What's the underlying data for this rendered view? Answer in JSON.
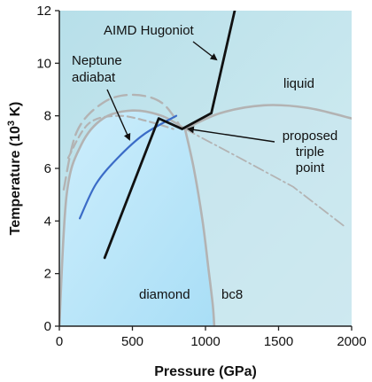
{
  "chart_data": {
    "type": "line",
    "xlabel": "Pressure (GPa)",
    "ylabel_main": "Temperature (10",
    "ylabel_sup": "3",
    "ylabel_end": " K)",
    "xlim": [
      0,
      2000
    ],
    "ylim": [
      0,
      12
    ],
    "xticks": [
      0,
      500,
      1000,
      1500,
      2000
    ],
    "yticks": [
      0,
      2,
      4,
      6,
      8,
      10,
      12
    ],
    "colors": {
      "liquid_region": "#bfe3ec",
      "diamond_region": "#bfe8fb",
      "melt_curve": "#b3b3b3",
      "dashed_curve": "#b3b3b3",
      "hugoniot": "#111111",
      "adiabat": "#3b6cc7"
    },
    "series": [
      {
        "key": "hugoniot",
        "style": "solid-black",
        "x": [
          310,
          680,
          840,
          1040,
          1200
        ],
        "y": [
          2.6,
          7.9,
          7.5,
          8.1,
          12.0
        ]
      },
      {
        "key": "adiabat",
        "style": "solid-blue",
        "x": [
          140,
          250,
          400,
          580,
          800
        ],
        "y": [
          4.1,
          5.4,
          6.4,
          7.3,
          8.0
        ]
      },
      {
        "key": "diamond_melt",
        "style": "solid-gray",
        "x": [
          0,
          50,
          150,
          300,
          500,
          700,
          860
        ],
        "y": [
          0,
          5.0,
          6.9,
          7.9,
          8.2,
          8.0,
          7.5
        ]
      },
      {
        "key": "bc8_melt",
        "style": "solid-gray",
        "x": [
          860,
          1100,
          1400,
          1700,
          2000
        ],
        "y": [
          7.5,
          8.1,
          8.4,
          8.3,
          7.9
        ]
      },
      {
        "key": "diamond_bc8_boundary",
        "style": "solid-gray",
        "x": [
          860,
          920,
          980,
          1020,
          1050,
          1060
        ],
        "y": [
          7.5,
          6.0,
          4.0,
          2.2,
          0.8,
          0
        ]
      },
      {
        "key": "dashed_upper",
        "style": "long-dash-gray",
        "x": [
          30,
          120,
          300,
          500,
          700,
          840
        ],
        "y": [
          5.2,
          7.4,
          8.5,
          8.8,
          8.5,
          7.5
        ]
      },
      {
        "key": "dashed_inner",
        "style": "dash-gray",
        "x": [
          60,
          200,
          400,
          600,
          780
        ],
        "y": [
          6.4,
          7.7,
          8.0,
          7.8,
          7.5
        ]
      },
      {
        "key": "dashdot_extension",
        "style": "dash-dot-gray",
        "x": [
          860,
          1200,
          1600,
          1950
        ],
        "y": [
          7.5,
          6.5,
          5.3,
          3.8
        ]
      }
    ],
    "annotations": {
      "hugoniot": "AIMD Hugoniot",
      "neptune_line1": "Neptune",
      "neptune_line2": "adiabat",
      "liquid": "liquid",
      "triple_line1": "proposed",
      "triple_line2": "triple",
      "triple_line3": "point",
      "diamond": "diamond",
      "bc8": "bc8"
    }
  }
}
